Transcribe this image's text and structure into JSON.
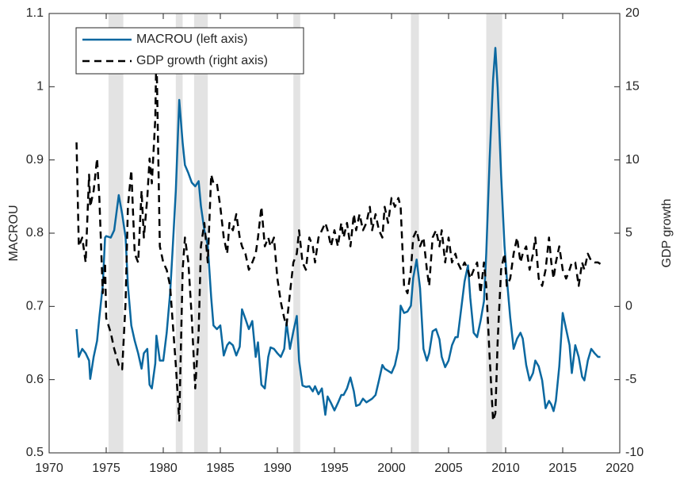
{
  "chart_data": {
    "type": "line",
    "y_label": "MACROU",
    "y2_label": "GDP growth",
    "xlim": [
      1970,
      2020
    ],
    "xticks": [
      1970,
      1975,
      1980,
      1985,
      1990,
      1995,
      2000,
      2005,
      2010,
      2015,
      2020
    ],
    "ylim": [
      0.5,
      1.1
    ],
    "yticks": [
      0.5,
      0.6,
      0.7,
      0.8,
      0.9,
      1,
      1.1
    ],
    "y2lim": [
      -10,
      20
    ],
    "y2ticks": [
      -10,
      -5,
      0,
      5,
      10,
      15,
      20
    ],
    "legend": "upper left",
    "shaded_periods": [
      [
        1975.2,
        1976.5
      ],
      [
        1981.1,
        1981.7
      ],
      [
        1982.7,
        1983.9
      ],
      [
        1991.4,
        1992.0
      ],
      [
        2001.7,
        2002.4
      ],
      [
        2008.3,
        2009.7
      ]
    ],
    "shade_color": "#e3e3e3",
    "x": [
      1972.4,
      1972.6,
      1972.9,
      1973.2,
      1973.5,
      1973.6,
      1973.9,
      1974.2,
      1974.4,
      1974.7,
      1974.9,
      1975.0,
      1975.4,
      1975.7,
      1976.1,
      1976.4,
      1976.7,
      1976.9,
      1977.2,
      1977.5,
      1977.8,
      1978.1,
      1978.3,
      1978.6,
      1978.8,
      1979.0,
      1979.3,
      1979.4,
      1979.7,
      1980.0,
      1980.3,
      1980.6,
      1980.8,
      1981.1,
      1981.4,
      1981.7,
      1981.9,
      1982.2,
      1982.5,
      1982.8,
      1983.1,
      1983.3,
      1983.6,
      1983.9,
      1984.2,
      1984.4,
      1984.7,
      1985.0,
      1985.3,
      1985.6,
      1985.8,
      1986.1,
      1986.4,
      1986.7,
      1986.9,
      1987.2,
      1987.5,
      1987.8,
      1988.1,
      1988.3,
      1988.6,
      1988.9,
      1989.2,
      1989.4,
      1989.7,
      1990.0,
      1990.3,
      1990.6,
      1990.8,
      1991.1,
      1991.4,
      1991.7,
      1991.9,
      1992.2,
      1992.5,
      1992.8,
      1993.1,
      1993.3,
      1993.6,
      1993.9,
      1994.2,
      1994.4,
      1994.7,
      1995.0,
      1995.3,
      1995.6,
      1995.8,
      1996.1,
      1996.4,
      1996.7,
      1996.9,
      1997.2,
      1997.5,
      1997.8,
      1998.1,
      1998.3,
      1998.6,
      1998.9,
      1999.2,
      1999.4,
      1999.7,
      2000.0,
      2000.3,
      2000.6,
      2000.8,
      2001.1,
      2001.4,
      2001.7,
      2001.9,
      2002.2,
      2002.5,
      2002.8,
      2003.1,
      2003.3,
      2003.6,
      2003.9,
      2004.2,
      2004.4,
      2004.7,
      2005.0,
      2005.3,
      2005.6,
      2005.8,
      2006.1,
      2006.4,
      2006.7,
      2006.9,
      2007.2,
      2007.5,
      2007.8,
      2008.1,
      2008.3,
      2008.6,
      2008.9,
      2009.1,
      2009.3,
      2009.6,
      2009.9,
      2010.1,
      2010.4,
      2010.7,
      2011.0,
      2011.3,
      2011.5,
      2011.8,
      2012.1,
      2012.4,
      2012.6,
      2012.9,
      2013.2,
      2013.5,
      2013.8,
      2014.0,
      2014.2,
      2014.4,
      2014.7,
      2015.0,
      2015.3,
      2015.6,
      2015.8,
      2016.1,
      2016.4,
      2016.7,
      2016.9,
      2017.2,
      2017.5,
      2017.8,
      2018.1,
      2018.3
    ],
    "series": [
      {
        "name": "MACROU (left axis)",
        "color": "#0b68a0",
        "linestyle": "solid",
        "axis": "y",
        "values": [
          0.669,
          0.631,
          0.642,
          0.636,
          0.626,
          0.601,
          0.631,
          0.653,
          0.685,
          0.729,
          0.794,
          0.796,
          0.794,
          0.804,
          0.852,
          0.826,
          0.794,
          0.729,
          0.674,
          0.653,
          0.636,
          0.615,
          0.636,
          0.642,
          0.593,
          0.588,
          0.622,
          0.66,
          0.626,
          0.626,
          0.664,
          0.718,
          0.772,
          0.858,
          0.982,
          0.923,
          0.893,
          0.882,
          0.869,
          0.864,
          0.871,
          0.837,
          0.804,
          0.783,
          0.712,
          0.674,
          0.669,
          0.674,
          0.633,
          0.647,
          0.651,
          0.647,
          0.633,
          0.645,
          0.696,
          0.683,
          0.669,
          0.68,
          0.631,
          0.651,
          0.593,
          0.588,
          0.631,
          0.644,
          0.642,
          0.636,
          0.631,
          0.642,
          0.678,
          0.642,
          0.666,
          0.687,
          0.626,
          0.592,
          0.59,
          0.591,
          0.584,
          0.591,
          0.58,
          0.588,
          0.552,
          0.577,
          0.568,
          0.558,
          0.568,
          0.579,
          0.579,
          0.588,
          0.603,
          0.584,
          0.564,
          0.566,
          0.574,
          0.569,
          0.572,
          0.574,
          0.579,
          0.599,
          0.62,
          0.615,
          0.612,
          0.609,
          0.62,
          0.642,
          0.701,
          0.691,
          0.693,
          0.701,
          0.739,
          0.764,
          0.725,
          0.642,
          0.626,
          0.636,
          0.666,
          0.669,
          0.655,
          0.631,
          0.617,
          0.626,
          0.647,
          0.658,
          0.658,
          0.696,
          0.734,
          0.756,
          0.712,
          0.664,
          0.658,
          0.68,
          0.707,
          0.772,
          0.902,
          1.01,
          1.053,
          0.999,
          0.88,
          0.783,
          0.739,
          0.685,
          0.642,
          0.656,
          0.664,
          0.656,
          0.62,
          0.599,
          0.609,
          0.626,
          0.618,
          0.599,
          0.561,
          0.571,
          0.566,
          0.557,
          0.571,
          0.618,
          0.691,
          0.669,
          0.647,
          0.609,
          0.647,
          0.631,
          0.604,
          0.599,
          0.626,
          0.642,
          0.636,
          0.631,
          0.631
        ]
      },
      {
        "name": "GDP growth (right axis)",
        "color": "#000000",
        "linestyle": "dashed",
        "axis": "y2",
        "values": [
          11.2,
          4.1,
          4.7,
          3.0,
          9.0,
          6.8,
          7.9,
          10.1,
          7.4,
          0.9,
          3.0,
          -0.8,
          -1.8,
          -2.9,
          -4.0,
          -4.3,
          0.3,
          6.8,
          9.3,
          3.6,
          3.0,
          7.9,
          4.7,
          7.4,
          10.1,
          8.4,
          12.8,
          17.6,
          4.1,
          3.0,
          2.5,
          1.4,
          -0.8,
          -4.0,
          -7.8,
          2.5,
          4.7,
          3.0,
          -0.8,
          -5.6,
          -1.8,
          4.1,
          5.7,
          3.0,
          9.0,
          8.4,
          8.4,
          6.8,
          4.7,
          3.6,
          5.7,
          5.2,
          6.3,
          4.7,
          4.1,
          3.6,
          2.5,
          3.0,
          3.6,
          4.7,
          6.8,
          4.1,
          4.7,
          4.1,
          4.7,
          1.9,
          0.3,
          -0.8,
          -1.3,
          0.9,
          3.0,
          3.6,
          5.2,
          3.0,
          2.5,
          4.7,
          4.1,
          3.0,
          4.7,
          5.2,
          5.7,
          5.2,
          4.1,
          5.2,
          4.1,
          5.7,
          4.7,
          5.7,
          4.1,
          6.3,
          5.2,
          6.3,
          5.2,
          5.7,
          6.8,
          5.2,
          6.3,
          5.2,
          4.7,
          6.8,
          5.7,
          7.4,
          6.8,
          7.4,
          6.8,
          1.4,
          0.9,
          2.5,
          4.7,
          5.2,
          4.1,
          4.7,
          2.5,
          1.4,
          4.7,
          5.2,
          4.1,
          5.2,
          3.0,
          4.7,
          3.0,
          3.6,
          3.0,
          2.5,
          3.0,
          2.5,
          1.9,
          2.5,
          3.0,
          0.9,
          3.0,
          1.4,
          -3.5,
          -7.8,
          -7.3,
          -2.4,
          2.5,
          3.6,
          1.4,
          1.9,
          3.6,
          4.7,
          3.0,
          3.6,
          4.1,
          2.5,
          3.6,
          4.7,
          1.9,
          1.4,
          2.5,
          4.7,
          3.0,
          1.9,
          3.0,
          4.1,
          2.5,
          1.9,
          2.5,
          3.0,
          3.0,
          1.4,
          3.0,
          2.5,
          3.6,
          3.1,
          3.0,
          3.0,
          2.9
        ]
      }
    ]
  }
}
